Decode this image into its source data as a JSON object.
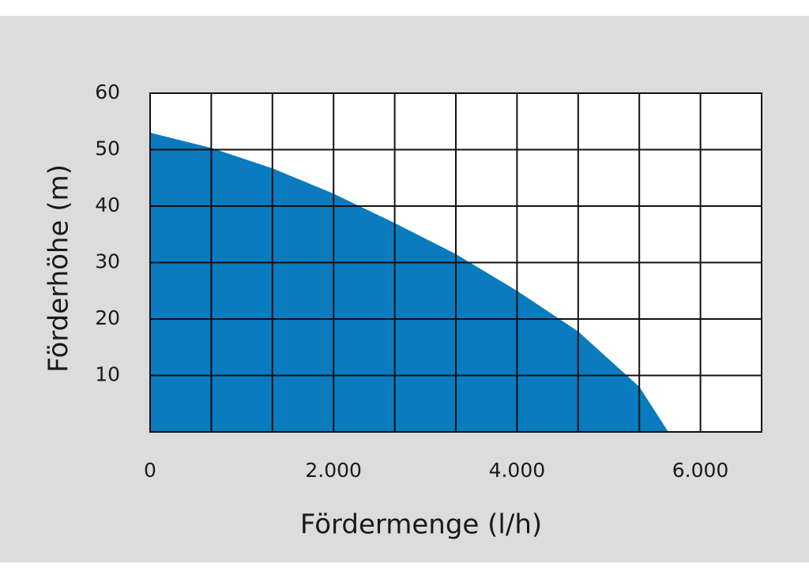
{
  "chart_data": {
    "type": "area",
    "x_label": "Fördermenge (l/h)",
    "y_label": "Förderhöhe (m)",
    "x": [
      0,
      667,
      1333,
      2000,
      2667,
      3333,
      4000,
      4667,
      5333,
      5650
    ],
    "values": [
      53,
      50.3,
      46.7,
      42.2,
      37,
      31.5,
      25,
      17.8,
      8,
      0
    ],
    "color": "#0b7bc0",
    "xlim": [
      0,
      6667
    ],
    "xticks": [
      0,
      {
        "value": 2000,
        "label": "2.000"
      },
      {
        "value": 4000,
        "label": "4.000"
      },
      {
        "value": 6000,
        "label": "6.000"
      }
    ],
    "ylim": [
      0,
      60
    ],
    "yticks": [
      10,
      20,
      30,
      40,
      50,
      60
    ],
    "grid": true
  }
}
